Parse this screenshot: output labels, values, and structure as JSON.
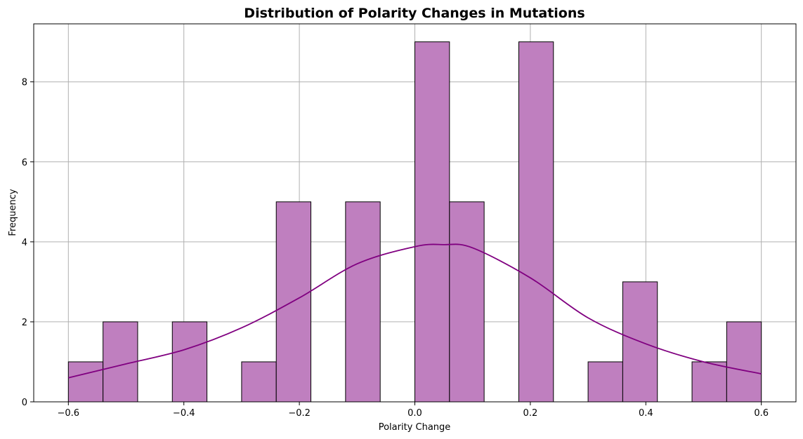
{
  "chart_data": {
    "type": "bar",
    "subtype": "histogram-with-kde",
    "title": "Distribution of Polarity Changes in Mutations",
    "xlabel": "Polarity Change",
    "ylabel": "Frequency",
    "xlim": [
      -0.66,
      0.66
    ],
    "ylim": [
      0,
      9.45
    ],
    "xticks": [
      -0.6,
      -0.4,
      -0.2,
      0.0,
      0.2,
      0.4,
      0.6
    ],
    "xtick_labels": [
      "−0.6",
      "−0.4",
      "−0.2",
      "0.0",
      "0.2",
      "0.4",
      "0.6"
    ],
    "yticks": [
      0,
      2,
      4,
      6,
      8
    ],
    "ytick_labels": [
      "0",
      "2",
      "4",
      "6",
      "8"
    ],
    "grid": true,
    "bin_edges": [
      -0.6,
      -0.54,
      -0.48,
      -0.42,
      -0.36,
      -0.3,
      -0.24,
      -0.18,
      -0.12,
      -0.06,
      0.0,
      0.06,
      0.12,
      0.18,
      0.24,
      0.3,
      0.36,
      0.42,
      0.48,
      0.54,
      0.6
    ],
    "counts": [
      1,
      2,
      0,
      2,
      0,
      1,
      5,
      0,
      5,
      0,
      9,
      5,
      0,
      9,
      0,
      1,
      3,
      0,
      1,
      2
    ],
    "colors": {
      "bar_fill": "#bf7fbf",
      "bar_edge": "#000000",
      "kde_line": "#800080",
      "grid": "#b0b0b0"
    },
    "kde": {
      "x": [
        -0.6,
        -0.5,
        -0.4,
        -0.3,
        -0.2,
        -0.1,
        0.0,
        0.05,
        0.1,
        0.2,
        0.3,
        0.4,
        0.5,
        0.6
      ],
      "y": [
        0.6,
        0.95,
        1.3,
        1.85,
        2.6,
        3.45,
        3.88,
        3.93,
        3.85,
        3.1,
        2.1,
        1.45,
        1.0,
        0.7
      ]
    }
  }
}
